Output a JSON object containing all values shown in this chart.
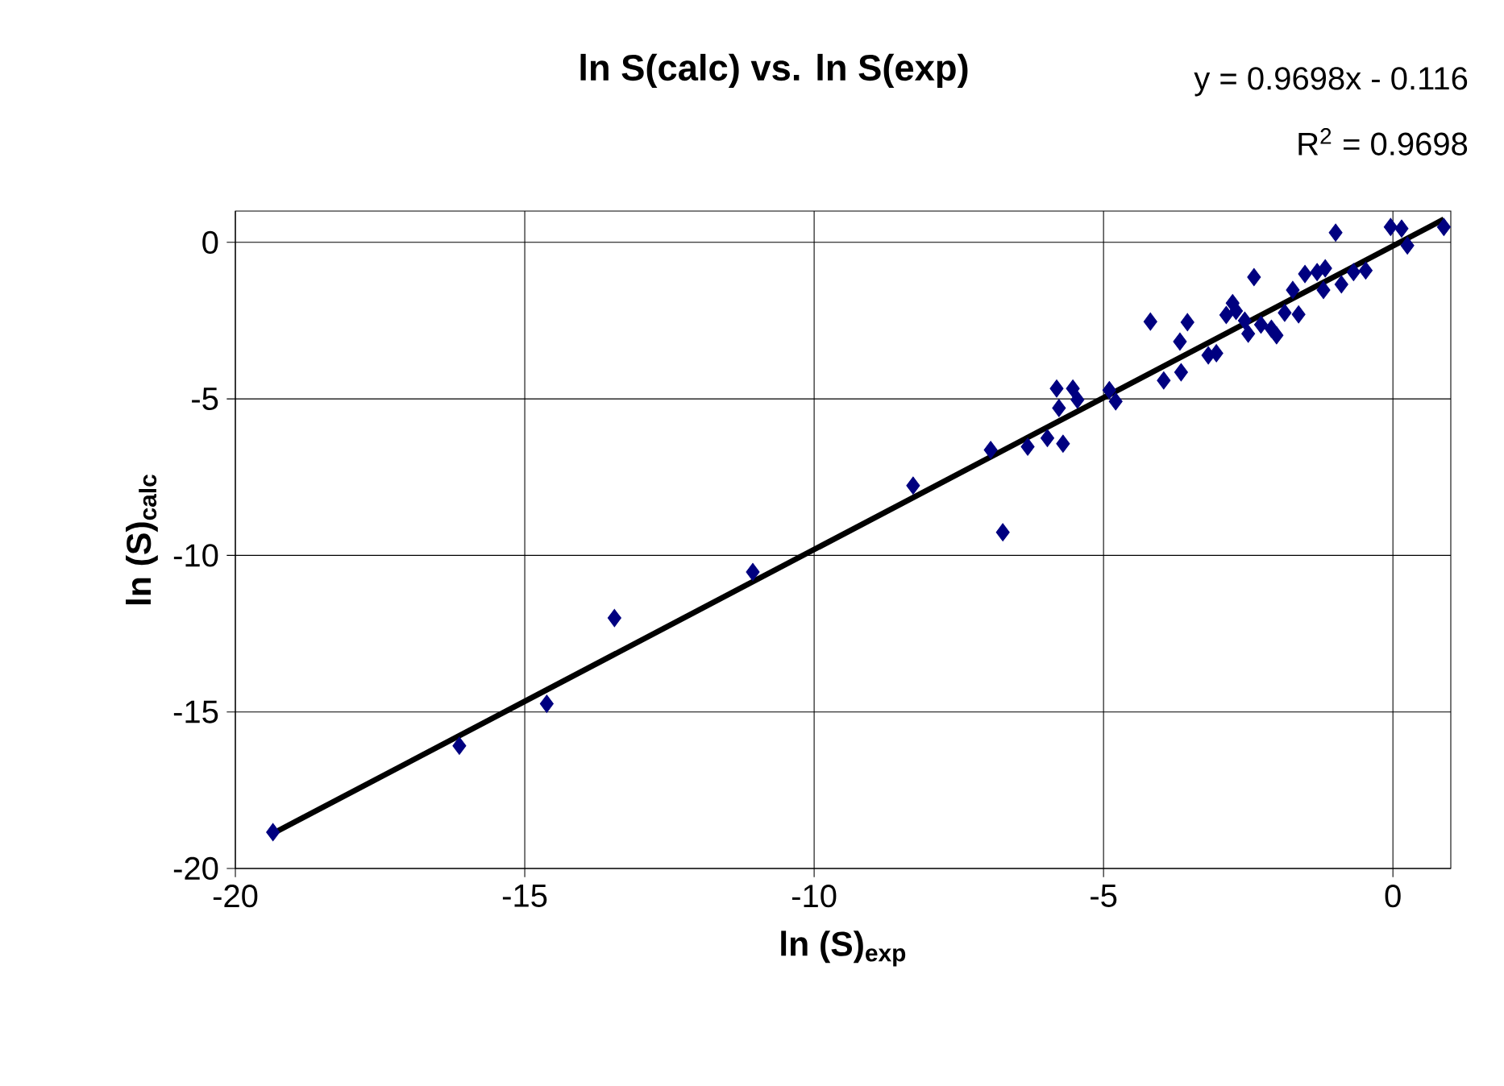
{
  "chart_data": {
    "type": "scatter",
    "title": "ln S(calc) vs. ln S(exp)",
    "xlabel": "ln (S)$_{exp}$",
    "ylabel": "ln (S)$_{calc}$",
    "annotations": [
      "y = 0.9698x - 0.116",
      "R$^{2}$ = 0.9698"
    ],
    "xlim": [
      -20,
      1
    ],
    "ylim": [
      -20,
      1
    ],
    "xticks": [
      -20,
      -15,
      -10,
      -5,
      0
    ],
    "yticks": [
      -20,
      -15,
      -10,
      -5,
      0
    ],
    "grid": true,
    "marker": "diamond",
    "series": [
      {
        "color": "#000080",
        "x": [
          -19.35,
          -16.13,
          -14.62,
          -13.45,
          -11.06,
          -8.29,
          -6.95,
          -6.74,
          -6.31,
          -5.97,
          -5.81,
          -5.77,
          -5.7,
          -5.53,
          -5.45,
          -4.9,
          -4.79,
          -4.19,
          -3.96,
          -3.68,
          -3.66,
          -3.55,
          -3.19,
          -3.05,
          -2.88,
          -2.77,
          -2.71,
          -2.56,
          -2.5,
          -2.4,
          -2.28,
          -2.1,
          -2.01,
          -1.87,
          -1.73,
          -1.63,
          -1.52,
          -1.31,
          -1.17,
          -1.2,
          -0.99,
          -0.89,
          -0.68,
          -0.47,
          -0.04,
          0.15,
          0.25,
          0.88
        ],
        "values": [
          -18.84,
          -16.08,
          -14.74,
          -12.0,
          -10.53,
          -7.77,
          -6.63,
          -9.26,
          -6.53,
          -6.25,
          -4.67,
          -5.29,
          -6.43,
          -4.67,
          -5.03,
          -4.72,
          -5.08,
          -2.53,
          -4.41,
          -3.17,
          -4.15,
          -2.55,
          -3.61,
          -3.54,
          -2.32,
          -1.94,
          -2.19,
          -2.5,
          -2.92,
          -1.11,
          -2.63,
          -2.76,
          -2.97,
          -2.25,
          -1.52,
          -2.3,
          -1.01,
          -0.95,
          -0.83,
          -1.52,
          0.31,
          -1.34,
          -0.95,
          -0.9,
          0.49,
          0.44,
          -0.1,
          0.49
        ]
      },
      {
        "type": "line",
        "color": "#000000",
        "marker": "none",
        "line_style": "solid",
        "x": [
          -19.35,
          0.88
        ],
        "values": [
          -18.88,
          0.74
        ]
      }
    ]
  }
}
